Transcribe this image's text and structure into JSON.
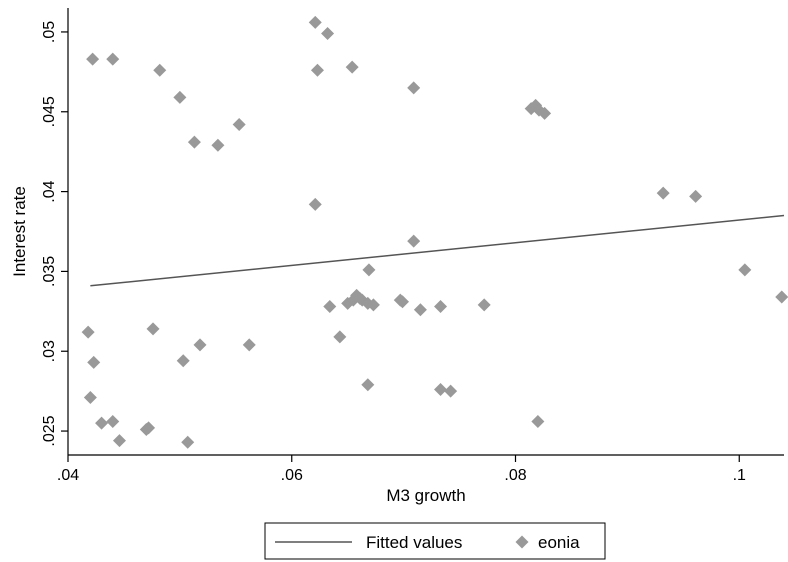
{
  "chart_data": {
    "type": "scatter",
    "xlabel": "M3 growth",
    "ylabel": "Interest rate",
    "xlim": [
      0.04,
      0.104
    ],
    "ylim": [
      0.0235,
      0.0515
    ],
    "x_ticks": [
      0.04,
      0.06,
      0.08,
      0.1
    ],
    "x_tick_labels": [
      ".04",
      ".06",
      ".08",
      ".1"
    ],
    "y_ticks": [
      0.025,
      0.03,
      0.035,
      0.04,
      0.045,
      0.05
    ],
    "y_tick_labels": [
      ".025",
      ".03",
      ".035",
      ".04",
      ".045",
      ".05"
    ],
    "grid": false,
    "legend_position": "bottom",
    "colors": {
      "fitted": "#555555",
      "eonia": "#999999"
    },
    "series": [
      {
        "name": "Fitted values",
        "type": "line",
        "x": [
          0.042,
          0.104
        ],
        "y": [
          0.0341,
          0.0385
        ]
      },
      {
        "name": "eonia",
        "type": "scatter",
        "marker": "diamond",
        "x": [
          0.0422,
          0.044,
          0.0482,
          0.05,
          0.0513,
          0.0534,
          0.0553,
          0.0418,
          0.0423,
          0.0476,
          0.0518,
          0.0503,
          0.0562,
          0.042,
          0.043,
          0.044,
          0.0446,
          0.047,
          0.0472,
          0.0507,
          0.0621,
          0.0632,
          0.0623,
          0.0654,
          0.0709,
          0.0621,
          0.0709,
          0.0669,
          0.0634,
          0.0643,
          0.065,
          0.0655,
          0.0658,
          0.0661,
          0.0663,
          0.0668,
          0.0673,
          0.0697,
          0.0699,
          0.0715,
          0.0733,
          0.0733,
          0.0742,
          0.0772,
          0.0668,
          0.0814,
          0.0818,
          0.0821,
          0.0826,
          0.0932,
          0.0961,
          0.1005,
          0.1038,
          0.082
        ],
        "y": [
          0.0483,
          0.0483,
          0.0476,
          0.0459,
          0.0431,
          0.0429,
          0.0442,
          0.0312,
          0.0293,
          0.0314,
          0.0304,
          0.0294,
          0.0304,
          0.0271,
          0.0255,
          0.0256,
          0.0244,
          0.0251,
          0.0252,
          0.0243,
          0.0506,
          0.0499,
          0.0476,
          0.0478,
          0.0465,
          0.0392,
          0.0369,
          0.0351,
          0.0328,
          0.0309,
          0.033,
          0.0332,
          0.0335,
          0.0333,
          0.0332,
          0.033,
          0.0329,
          0.0332,
          0.0331,
          0.0326,
          0.0328,
          0.0276,
          0.0275,
          0.0329,
          0.0279,
          0.0452,
          0.0454,
          0.0451,
          0.0449,
          0.0399,
          0.0397,
          0.0351,
          0.0334,
          0.0256
        ]
      }
    ]
  }
}
